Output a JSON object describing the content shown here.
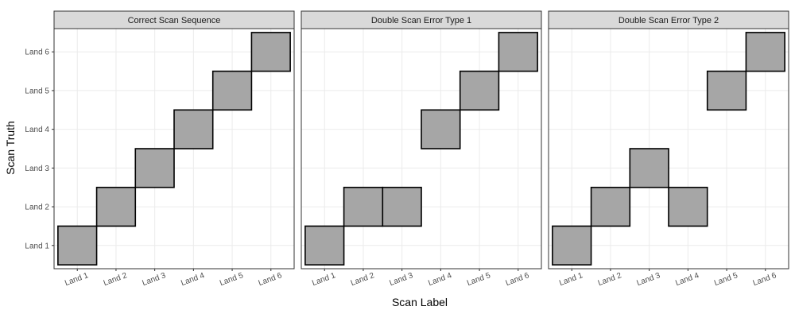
{
  "chart_data": {
    "type": "heatmap",
    "xlabel": "Scan Label",
    "ylabel": "Scan Truth",
    "x_categories": [
      "Land 1",
      "Land 2",
      "Land 3",
      "Land 4",
      "Land 5",
      "Land 6"
    ],
    "y_categories": [
      "Land 1",
      "Land 2",
      "Land 3",
      "Land 4",
      "Land 5",
      "Land 6"
    ],
    "grid": true,
    "legend": "none",
    "panels": [
      {
        "title": "Correct Scan Sequence",
        "cells": [
          {
            "x": "Land 1",
            "y": "Land 1"
          },
          {
            "x": "Land 2",
            "y": "Land 2"
          },
          {
            "x": "Land 3",
            "y": "Land 3"
          },
          {
            "x": "Land 4",
            "y": "Land 4"
          },
          {
            "x": "Land 5",
            "y": "Land 5"
          },
          {
            "x": "Land 6",
            "y": "Land 6"
          }
        ]
      },
      {
        "title": "Double Scan Error Type 1",
        "cells": [
          {
            "x": "Land 1",
            "y": "Land 1"
          },
          {
            "x": "Land 2",
            "y": "Land 2"
          },
          {
            "x": "Land 3",
            "y": "Land 2"
          },
          {
            "x": "Land 4",
            "y": "Land 4"
          },
          {
            "x": "Land 5",
            "y": "Land 5"
          },
          {
            "x": "Land 6",
            "y": "Land 6"
          }
        ]
      },
      {
        "title": "Double Scan Error Type 2",
        "cells": [
          {
            "x": "Land 1",
            "y": "Land 1"
          },
          {
            "x": "Land 2",
            "y": "Land 2"
          },
          {
            "x": "Land 3",
            "y": "Land 3"
          },
          {
            "x": "Land 4",
            "y": "Land 2"
          },
          {
            "x": "Land 5",
            "y": "Land 5"
          },
          {
            "x": "Land 6",
            "y": "Land 6"
          }
        ]
      }
    ]
  },
  "colors": {
    "tile_fill": "#a6a6a6",
    "tile_stroke": "#000000",
    "strip_fill": "#d9d9d9",
    "panel_border": "#333333",
    "grid_line": "#ebebeb"
  }
}
